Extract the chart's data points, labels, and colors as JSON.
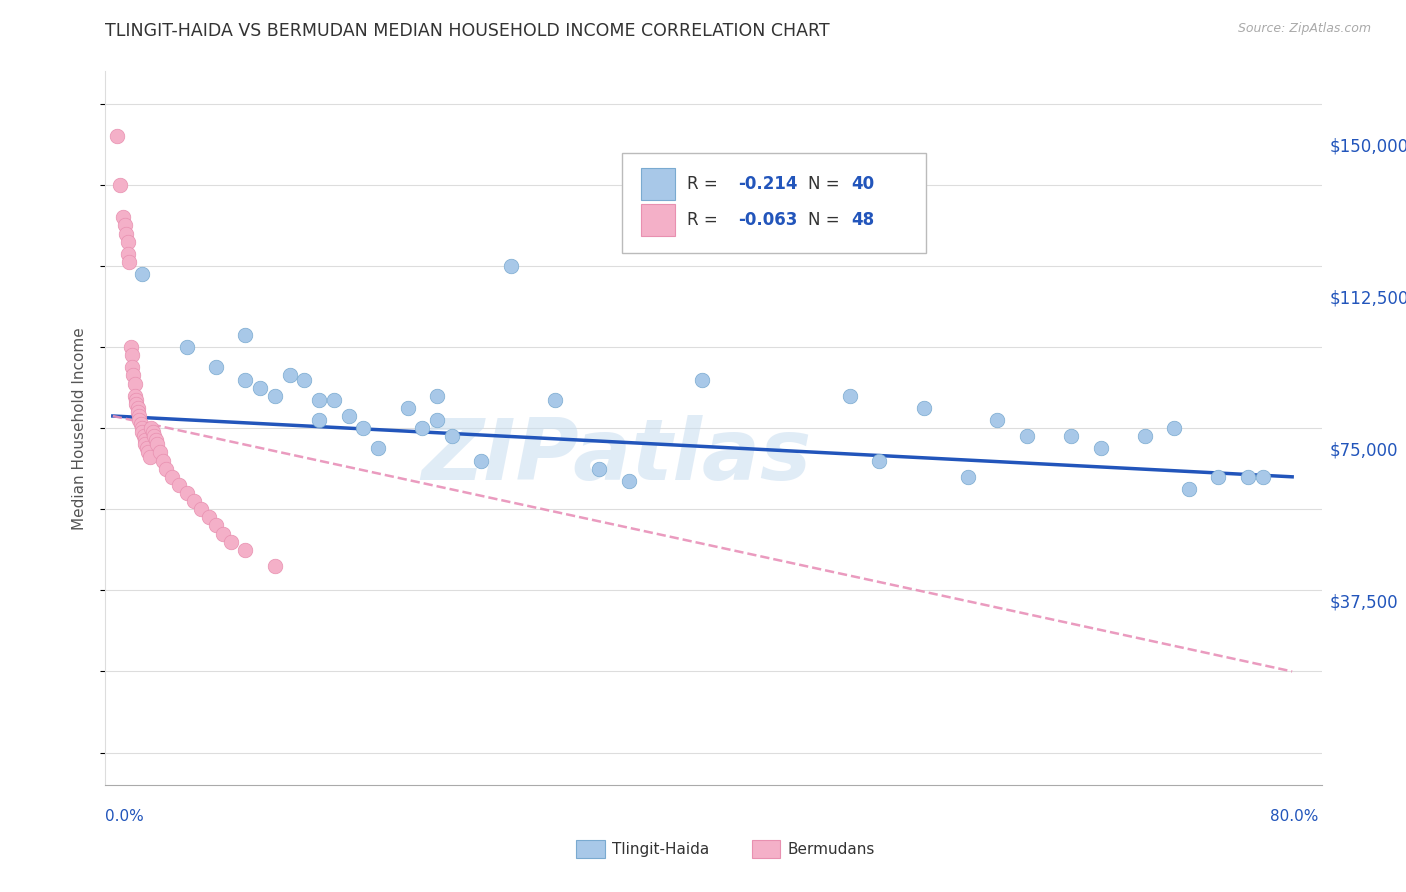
{
  "title": "TLINGIT-HAIDA VS BERMUDAN MEDIAN HOUSEHOLD INCOME CORRELATION CHART",
  "source_text": "Source: ZipAtlas.com",
  "ylabel": "Median Household Income",
  "xlim": [
    -0.005,
    0.82
  ],
  "ylim": [
    -8000,
    168000
  ],
  "plot_xlim": [
    0.0,
    0.8
  ],
  "ytick_vals": [
    37500,
    75000,
    112500,
    150000
  ],
  "ytick_labels": [
    "$37,500",
    "$75,000",
    "$112,500",
    "$150,000"
  ],
  "tlingit_color": "#a8c8e8",
  "tlingit_edge": "#7aaad0",
  "bermuda_color": "#f4b0c8",
  "bermuda_edge": "#e890b0",
  "trendline_blue_color": "#2255bb",
  "trendline_pink_color": "#e890b8",
  "grid_color": "#dddddd",
  "watermark_text": "ZIPatlas",
  "watermark_color": "#c8ddf0",
  "blue_trend": [
    0.0,
    0.8,
    83000,
    68000
  ],
  "pink_trend": [
    0.0,
    0.8,
    83000,
    20000
  ],
  "tlingit_x": [
    0.02,
    0.05,
    0.07,
    0.09,
    0.09,
    0.1,
    0.11,
    0.12,
    0.13,
    0.14,
    0.14,
    0.15,
    0.16,
    0.17,
    0.18,
    0.2,
    0.21,
    0.22,
    0.22,
    0.23,
    0.25,
    0.27,
    0.3,
    0.33,
    0.35,
    0.4,
    0.5,
    0.52,
    0.55,
    0.58,
    0.6,
    0.62,
    0.65,
    0.67,
    0.7,
    0.72,
    0.73,
    0.75,
    0.77,
    0.78
  ],
  "tlingit_y": [
    118000,
    100000,
    95000,
    103000,
    92000,
    90000,
    88000,
    93000,
    92000,
    87000,
    82000,
    87000,
    83000,
    80000,
    75000,
    85000,
    80000,
    88000,
    82000,
    78000,
    72000,
    120000,
    87000,
    70000,
    67000,
    92000,
    88000,
    72000,
    85000,
    68000,
    82000,
    78000,
    78000,
    75000,
    78000,
    80000,
    65000,
    68000,
    68000,
    68000
  ],
  "bermuda_x": [
    0.003,
    0.005,
    0.007,
    0.008,
    0.009,
    0.01,
    0.01,
    0.011,
    0.012,
    0.013,
    0.013,
    0.014,
    0.015,
    0.015,
    0.016,
    0.016,
    0.017,
    0.017,
    0.018,
    0.018,
    0.019,
    0.02,
    0.02,
    0.021,
    0.022,
    0.022,
    0.023,
    0.024,
    0.025,
    0.026,
    0.027,
    0.028,
    0.029,
    0.03,
    0.032,
    0.034,
    0.036,
    0.04,
    0.045,
    0.05,
    0.055,
    0.06,
    0.065,
    0.07,
    0.075,
    0.08,
    0.09,
    0.11
  ],
  "bermuda_y": [
    152000,
    140000,
    132000,
    130000,
    128000,
    126000,
    123000,
    121000,
    100000,
    98000,
    95000,
    93000,
    91000,
    88000,
    87000,
    86000,
    85000,
    84000,
    83000,
    82000,
    81000,
    80000,
    79000,
    78000,
    77000,
    76000,
    75000,
    74000,
    73000,
    80000,
    79000,
    78000,
    77000,
    76000,
    74000,
    72000,
    70000,
    68000,
    66000,
    64000,
    62000,
    60000,
    58000,
    56000,
    54000,
    52000,
    50000,
    46000
  ]
}
